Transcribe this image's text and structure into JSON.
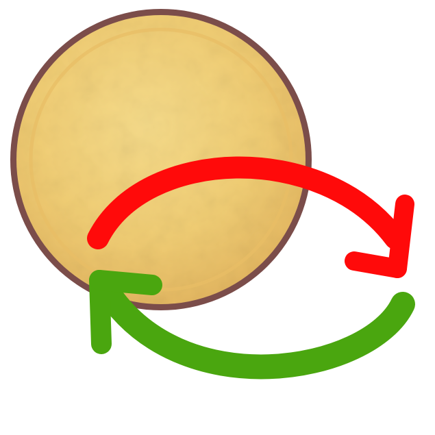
{
  "icon": {
    "name": "swap-cycle-icon",
    "colors": {
      "coin_fill": "#F0CD74",
      "coin_highlight": "#F6DB8A",
      "coin_shadow": "#E3B660",
      "coin_rim": "#7B4D4A",
      "arrow_forward": "#FF0A0A",
      "arrow_back": "#4AA60F",
      "background": "#FFFFFF"
    }
  }
}
